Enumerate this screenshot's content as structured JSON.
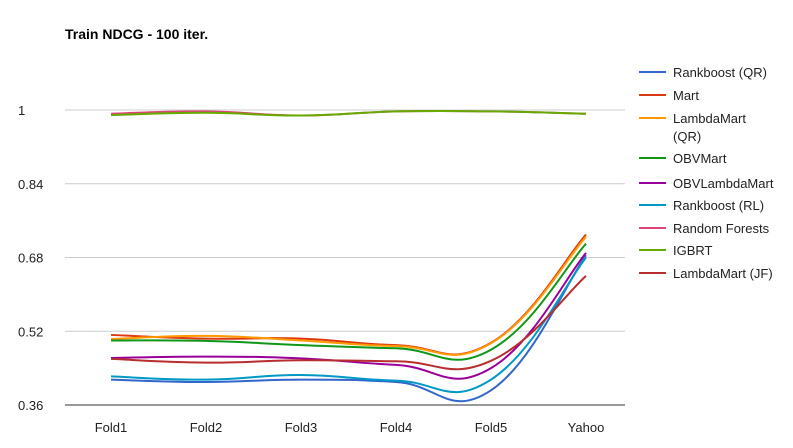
{
  "chart_data": {
    "type": "line",
    "title": "Train NDCG - 100 iter.",
    "xlabel": "",
    "ylabel": "",
    "categories": [
      "Fold1",
      "Fold2",
      "Fold3",
      "Fold4",
      "Fold5",
      "Yahoo"
    ],
    "yticks": [
      "0.36",
      "0.52",
      "0.68",
      "0.84",
      "1"
    ],
    "ylim": [
      0.36,
      1.0
    ],
    "grid": true,
    "legend_position": "right",
    "series": [
      {
        "name": "Rankboost (QR)",
        "color": "#3366cc",
        "values": [
          0.415,
          0.41,
          0.415,
          0.41,
          0.392,
          0.685
        ]
      },
      {
        "name": "Mart",
        "color": "#dc3912",
        "values": [
          0.512,
          0.504,
          0.504,
          0.49,
          0.495,
          0.73
        ]
      },
      {
        "name": "LambdaMart (QR)",
        "color": "#ff9900",
        "values": [
          0.503,
          0.51,
          0.5,
          0.488,
          0.494,
          0.725
        ]
      },
      {
        "name": "OBVMart",
        "color": "#109618",
        "values": [
          0.5,
          0.499,
          0.49,
          0.483,
          0.48,
          0.71
        ]
      },
      {
        "name": "OBVLambdaMart",
        "color": "#990099",
        "values": [
          0.462,
          0.465,
          0.461,
          0.447,
          0.44,
          0.69
        ]
      },
      {
        "name": "Rankboost (RL)",
        "color": "#0099c6",
        "values": [
          0.422,
          0.415,
          0.425,
          0.413,
          0.415,
          0.68
        ]
      },
      {
        "name": "Random Forests",
        "color": "#dd4477",
        "values": [
          0.992,
          0.997,
          0.988,
          0.997,
          0.997,
          0.992
        ]
      },
      {
        "name": "IGBRT",
        "color": "#66aa00",
        "values": [
          0.989,
          0.994,
          0.988,
          0.997,
          0.997,
          0.992
        ]
      },
      {
        "name": "LambdaMart (JF)",
        "color": "#b82e2e",
        "values": [
          0.46,
          0.452,
          0.457,
          0.455,
          0.456,
          0.64
        ]
      }
    ]
  }
}
